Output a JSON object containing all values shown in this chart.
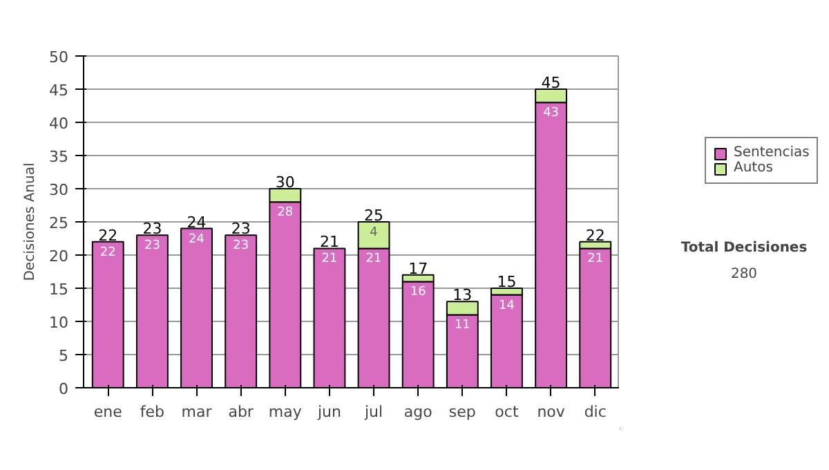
{
  "chart_data": {
    "type": "bar",
    "stacked": true,
    "ylabel": "Decisiones Anual",
    "categories": [
      "ene",
      "feb",
      "mar",
      "abr",
      "may",
      "jun",
      "jul",
      "ago",
      "sep",
      "oct",
      "nov",
      "dic"
    ],
    "series": [
      {
        "name": "Sentencias",
        "color": "#d96cc0",
        "values": [
          22,
          23,
          24,
          23,
          28,
          21,
          21,
          16,
          11,
          14,
          43,
          21
        ],
        "value_labels": [
          "22",
          "23",
          "24",
          "23",
          "28",
          "21",
          "21",
          "16",
          "11",
          "14",
          "43",
          "21"
        ]
      },
      {
        "name": "Autos",
        "color": "#ccee99",
        "values": [
          0,
          0,
          0,
          0,
          2,
          0,
          4,
          1,
          2,
          1,
          2,
          1
        ],
        "value_labels": [
          null,
          null,
          null,
          null,
          null,
          null,
          "4",
          null,
          null,
          null,
          null,
          null
        ]
      }
    ],
    "totals": [
      "22",
      "23",
      "24",
      "23",
      "30",
      "21",
      "25",
      "17",
      "13",
      "15",
      "45",
      "22"
    ],
    "ylim": [
      0,
      50
    ],
    "yticks": [
      0,
      5,
      10,
      15,
      20,
      25,
      30,
      35,
      40,
      45,
      50
    ],
    "grid": "y",
    "legend": "right",
    "annotations": [
      "Total Decisiones",
      "280"
    ]
  }
}
